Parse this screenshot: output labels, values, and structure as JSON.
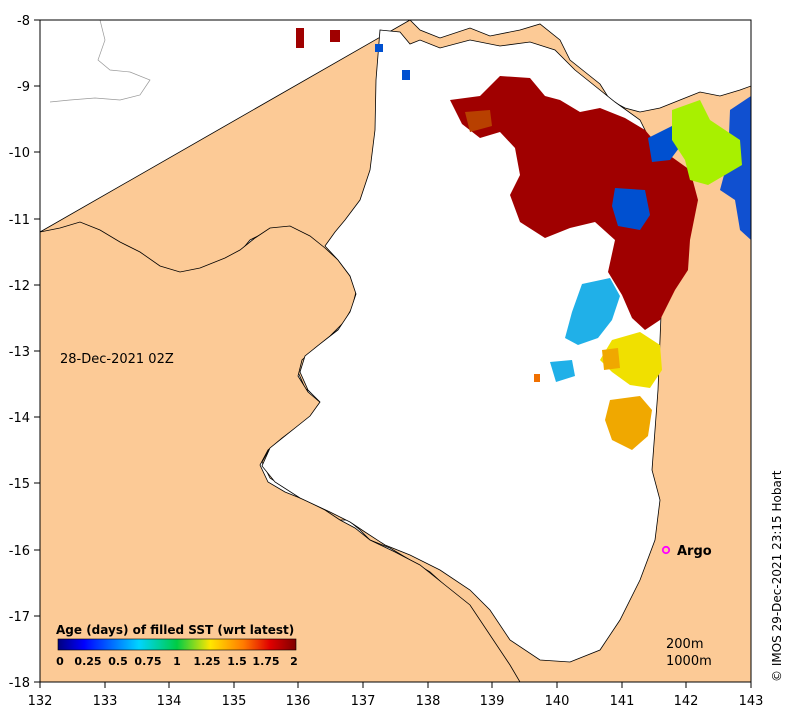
{
  "map": {
    "date_label": "28-Dec-2021 02Z",
    "credit": "© IMOS 29-Dec-2021 23:15 Hobart",
    "depth_labels": [
      "200m",
      "1000m"
    ],
    "argo_label": "Argo",
    "argo_position": {
      "lon": 141.7,
      "lat": -16.0
    },
    "lon_range": [
      132,
      143
    ],
    "lat_range": [
      -18,
      -8
    ],
    "x_ticks": [
      "132",
      "133",
      "134",
      "135",
      "136",
      "137",
      "138",
      "139",
      "140",
      "141",
      "142",
      "143"
    ],
    "y_ticks": [
      "-8",
      "-9",
      "-10",
      "-11",
      "-12",
      "-13",
      "-14",
      "-15",
      "-16",
      "-17",
      "-18"
    ],
    "colors": {
      "land": "#fcca96",
      "ocean": "#ffffff",
      "argo_marker": "#ff00ff"
    }
  },
  "colorbar": {
    "title": "Age (days) of filled SST (wrt latest)",
    "ticks": [
      "0",
      "0.25",
      "0.5",
      "0.75",
      "1",
      "1.25",
      "1.5",
      "1.75",
      "2"
    ],
    "range": [
      0,
      2
    ]
  }
}
